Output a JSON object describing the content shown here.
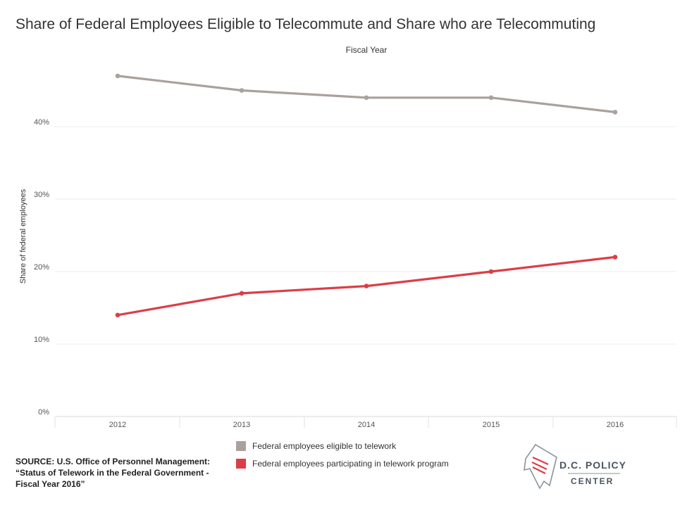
{
  "chart_data": {
    "type": "line",
    "title": "Share of Federal Employees Eligible to Telecommute and Share who are Telecommuting",
    "xlabel": "Fiscal Year",
    "ylabel": "Share of federal employees",
    "x": [
      "2012",
      "2013",
      "2014",
      "2015",
      "2016"
    ],
    "y_ticks": [
      "0%",
      "10%",
      "20%",
      "30%",
      "40%"
    ],
    "ylim": [
      0,
      50
    ],
    "grid": true,
    "legend_position": "bottom",
    "series": [
      {
        "name": "Federal employees eligible to telework",
        "color": "#aaa19e",
        "values": [
          47,
          45,
          44,
          44,
          42
        ]
      },
      {
        "name": "Federal employees participating in telework program",
        "color": "#dc3e46",
        "values": [
          14,
          17,
          18,
          20,
          22
        ]
      }
    ]
  },
  "source": {
    "line1": "SOURCE: U.S. Office of Personnel Management:",
    "line2": "“Status of Telework in the Federal Government -",
    "line3": "Fiscal Year 2016”"
  },
  "logo": {
    "name": "D.C. POLICY",
    "sub": "CENTER",
    "accent": "#dc3e46"
  }
}
